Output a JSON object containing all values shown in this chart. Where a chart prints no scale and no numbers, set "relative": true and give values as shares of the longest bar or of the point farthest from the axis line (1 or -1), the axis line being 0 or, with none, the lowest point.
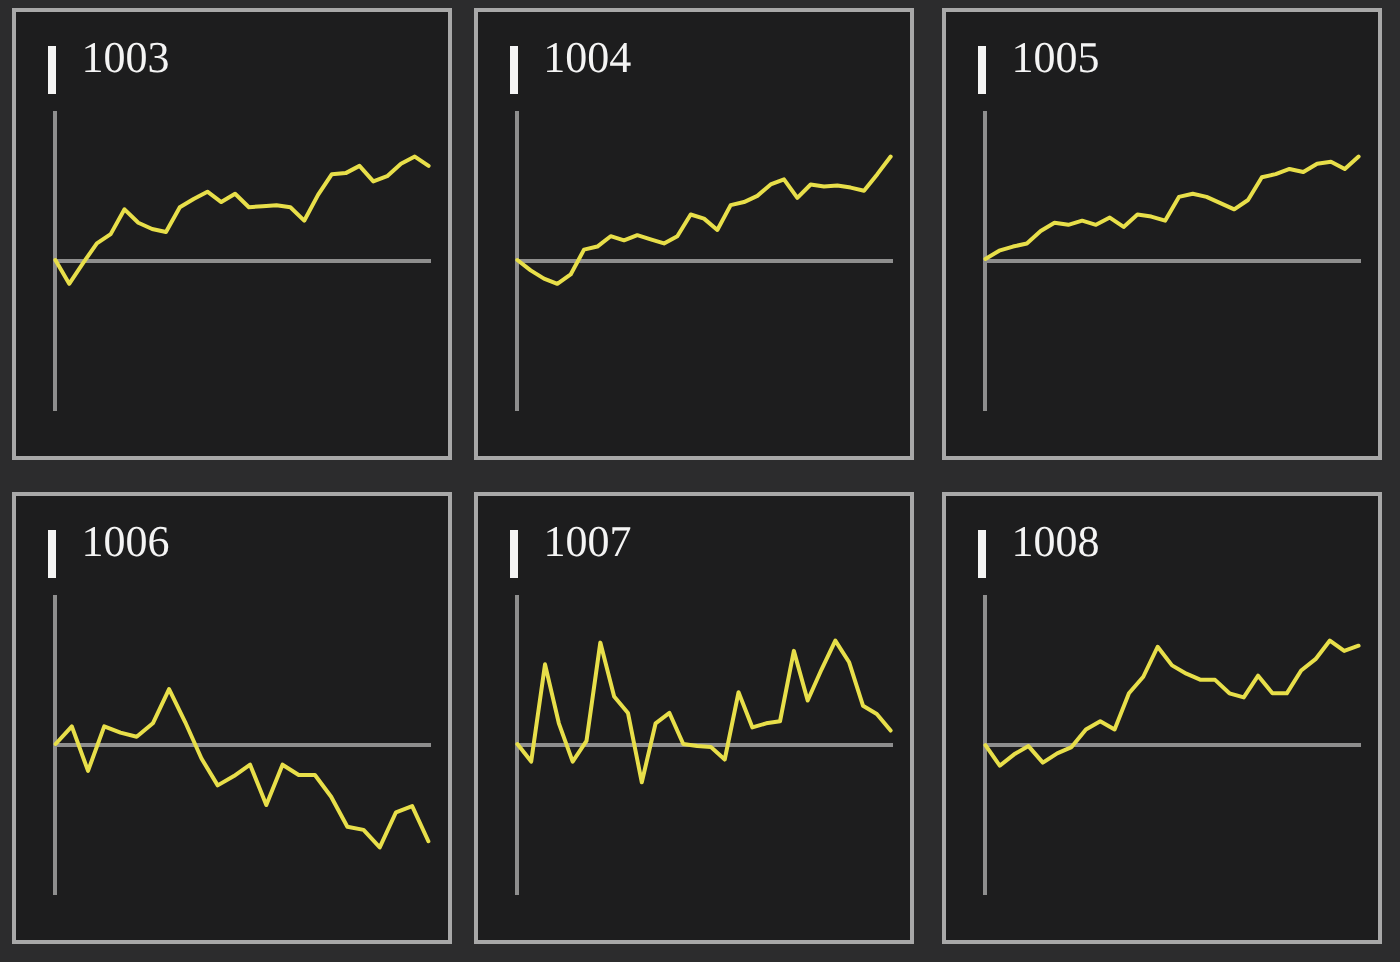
{
  "chart_data": [
    {
      "type": "line",
      "title": "1003",
      "relative": true,
      "categories": [
        null,
        null,
        null,
        null,
        null,
        null,
        null,
        null,
        null,
        null,
        null,
        null,
        null,
        null,
        null,
        null,
        null,
        null,
        null,
        null,
        null,
        null,
        null,
        null,
        null,
        null,
        null,
        null
      ],
      "series": [
        {
          "color": "#e8df4a",
          "values": [
            0,
            -0.23,
            -0.03,
            0.16,
            0.25,
            0.49,
            0.36,
            0.3,
            0.27,
            0.51,
            0.59,
            0.66,
            0.56,
            0.64,
            0.51,
            0.52,
            0.53,
            0.51,
            0.38,
            0.63,
            0.83,
            0.84,
            0.91,
            0.76,
            0.81,
            0.93,
            1,
            0.91
          ]
        }
      ]
    },
    {
      "type": "line",
      "title": "1004",
      "relative": true,
      "categories": [
        null,
        null,
        null,
        null,
        null,
        null,
        null,
        null,
        null,
        null,
        null,
        null,
        null,
        null,
        null,
        null,
        null,
        null,
        null,
        null,
        null,
        null,
        null,
        null,
        null,
        null,
        null,
        null,
        null
      ],
      "series": [
        {
          "color": "#e8df4a",
          "values": [
            0,
            -0.1,
            -0.18,
            -0.23,
            -0.14,
            0.1,
            0.13,
            0.23,
            0.19,
            0.24,
            0.2,
            0.16,
            0.23,
            0.44,
            0.4,
            0.29,
            0.53,
            0.56,
            0.62,
            0.73,
            0.78,
            0.6,
            0.73,
            0.71,
            0.72,
            0.7,
            0.67,
            0.83,
            1
          ]
        }
      ]
    },
    {
      "type": "line",
      "title": "1005",
      "relative": true,
      "categories": [
        null,
        null,
        null,
        null,
        null,
        null,
        null,
        null,
        null,
        null,
        null,
        null,
        null,
        null,
        null,
        null,
        null,
        null,
        null,
        null,
        null,
        null,
        null,
        null,
        null,
        null,
        null,
        null
      ],
      "series": [
        {
          "color": "#e8df4a",
          "values": [
            0.01,
            0.09,
            0.13,
            0.16,
            0.28,
            0.36,
            0.34,
            0.38,
            0.34,
            0.41,
            0.32,
            0.44,
            0.42,
            0.38,
            0.61,
            0.64,
            0.61,
            0.55,
            0.49,
            0.58,
            0.8,
            0.83,
            0.88,
            0.85,
            0.93,
            0.95,
            0.88,
            1
          ]
        }
      ]
    },
    {
      "type": "line",
      "title": "1006",
      "relative": true,
      "categories": [
        null,
        null,
        null,
        null,
        null,
        null,
        null,
        null,
        null,
        null,
        null,
        null,
        null,
        null,
        null,
        null,
        null,
        null,
        null,
        null,
        null,
        null,
        null,
        null
      ],
      "series": [
        {
          "color": "#e8df4a",
          "values": [
            0,
            0.17,
            -0.26,
            0.17,
            0.11,
            0.07,
            0.2,
            0.53,
            0.21,
            -0.14,
            -0.4,
            -0.31,
            -0.2,
            -0.59,
            -0.2,
            -0.3,
            -0.3,
            -0.51,
            -0.8,
            -0.83,
            -1,
            -0.66,
            -0.6,
            -0.94
          ]
        }
      ]
    },
    {
      "type": "line",
      "title": "1007",
      "relative": true,
      "categories": [
        null,
        null,
        null,
        null,
        null,
        null,
        null,
        null,
        null,
        null,
        null,
        null,
        null,
        null,
        null,
        null,
        null,
        null,
        null,
        null,
        null,
        null,
        null,
        null,
        null,
        null,
        null,
        null
      ],
      "series": [
        {
          "color": "#e8df4a",
          "values": [
            0,
            -0.17,
            0.77,
            0.2,
            -0.17,
            0.03,
            0.98,
            0.46,
            0.3,
            -0.37,
            0.2,
            0.3,
            0,
            -0.02,
            -0.03,
            -0.15,
            0.5,
            0.16,
            0.2,
            0.22,
            0.9,
            0.42,
            0.72,
            1,
            0.79,
            0.37,
            0.29,
            0.13
          ]
        }
      ]
    },
    {
      "type": "line",
      "title": "1008",
      "relative": true,
      "categories": [
        null,
        null,
        null,
        null,
        null,
        null,
        null,
        null,
        null,
        null,
        null,
        null,
        null,
        null,
        null,
        null,
        null,
        null,
        null,
        null,
        null,
        null,
        null,
        null,
        null,
        null,
        null
      ],
      "series": [
        {
          "color": "#e8df4a",
          "values": [
            -0.01,
            -0.21,
            -0.1,
            -0.02,
            -0.18,
            -0.09,
            -0.03,
            0.14,
            0.22,
            0.14,
            0.49,
            0.65,
            0.94,
            0.76,
            0.68,
            0.62,
            0.62,
            0.49,
            0.45,
            0.66,
            0.49,
            0.49,
            0.71,
            0.82,
            1,
            0.9,
            0.95
          ]
        }
      ]
    }
  ]
}
